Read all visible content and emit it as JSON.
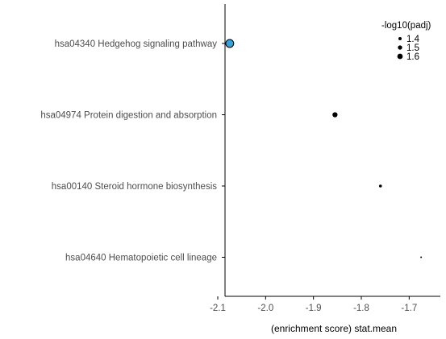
{
  "chart_data": {
    "type": "scatter",
    "xlabel": "(enrichment score) stat.mean",
    "ylabel": "",
    "xlim": [
      -2.1,
      -1.65
    ],
    "xticks": [
      "-2.1",
      "-2.0",
      "-1.9",
      "-1.8",
      "-1.7"
    ],
    "xtick_values": [
      -2.1,
      -2.0,
      -1.9,
      -1.8,
      -1.7
    ],
    "categories": [
      "hsa04340 Hedgehog signaling pathway",
      "hsa04974 Protein digestion and absorption",
      "hsa00140 Steroid hormone biosynthesis",
      "hsa04640 Hematopoietic cell lineage"
    ],
    "points": [
      {
        "category": "hsa04340 Hedgehog signaling pathway",
        "x": -2.075,
        "neglog10padj": 1.8,
        "color": "#3aa0dc"
      },
      {
        "category": "hsa04974 Protein digestion and absorption",
        "x": -1.855,
        "neglog10padj": 1.6,
        "color": "#000000"
      },
      {
        "category": "hsa00140 Steroid hormone biosynthesis",
        "x": -1.76,
        "neglog10padj": 1.45,
        "color": "#000000"
      },
      {
        "category": "hsa04640 Hematopoietic cell lineage",
        "x": -1.675,
        "neglog10padj": 1.3,
        "color": "#000000"
      }
    ],
    "legend": {
      "title": "-log10(padj)",
      "placement": "top-right",
      "entries": [
        {
          "label": "1.4",
          "value": 1.4
        },
        {
          "label": "1.5",
          "value": 1.5
        },
        {
          "label": "1.6",
          "value": 1.6
        }
      ]
    },
    "grid": false
  }
}
